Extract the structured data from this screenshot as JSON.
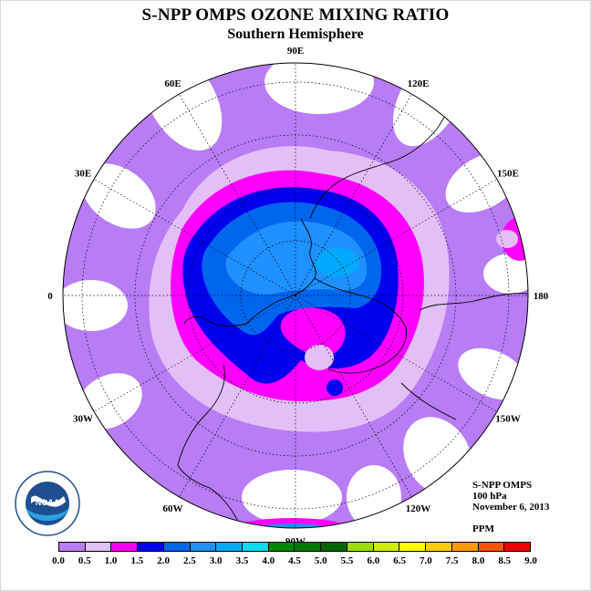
{
  "title": "S-NPP OMPS OZONE MIXING RATIO",
  "subtitle": "Southern Hemisphere",
  "longitude_labels": [
    {
      "text": "90W",
      "deg": 90
    },
    {
      "text": "60W",
      "deg": 60
    },
    {
      "text": "30W",
      "deg": 30
    },
    {
      "text": "0",
      "deg": 0
    },
    {
      "text": "30E",
      "deg": -30
    },
    {
      "text": "60E",
      "deg": -60
    },
    {
      "text": "90E",
      "deg": -90
    },
    {
      "text": "120E",
      "deg": -120
    },
    {
      "text": "150E",
      "deg": -150
    },
    {
      "text": "180",
      "deg": 180
    },
    {
      "text": "150W",
      "deg": 150
    },
    {
      "text": "120W",
      "deg": 120
    }
  ],
  "info": {
    "instrument": "S-NPP OMPS",
    "level": "100 hPa",
    "date": "November 6, 2013",
    "units": "PPM"
  },
  "logo_text": "NOAA",
  "legend": {
    "ticks": [
      "0.0",
      "0.5",
      "1.0",
      "1.5",
      "2.0",
      "2.5",
      "3.0",
      "3.5",
      "4.0",
      "4.5",
      "5.0",
      "5.5",
      "6.0",
      "6.5",
      "7.0",
      "7.5",
      "8.0",
      "8.5",
      "9.0"
    ],
    "colors": [
      "#b87cf5",
      "#e3bff8",
      "#ff00ff",
      "#0000ee",
      "#0066ee",
      "#1e90ff",
      "#00aaff",
      "#00ddee",
      "#008800",
      "#007700",
      "#006600",
      "#99dd00",
      "#ccee00",
      "#ffff00",
      "#ffcc00",
      "#ff9900",
      "#ff5500",
      "#ee0000",
      "#8b5a3c"
    ]
  },
  "colors": {
    "ring_purple": "#b87cf5",
    "lavender": "#e3bff8",
    "magenta": "#ff00ff",
    "blue": "#0000ee",
    "mid_blue": "#0066ee",
    "light_blue": "#1e90ff",
    "sky_blue": "#00aaff"
  }
}
